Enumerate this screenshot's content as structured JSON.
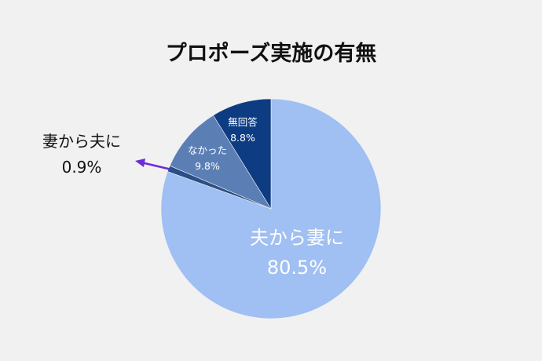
{
  "chart_data": {
    "type": "pie",
    "title": "プロポーズ実施の有無",
    "slices": [
      {
        "label": "夫から妻に",
        "value": 80.5,
        "display": "80.5%",
        "color": "#a0bff2"
      },
      {
        "label": "妻から夫に",
        "value": 0.9,
        "display": "0.9%",
        "color": "#2a4f86"
      },
      {
        "label": "なかった",
        "value": 9.8,
        "display": "9.8%",
        "color": "#5b7fb5"
      },
      {
        "label": "無回答",
        "value": 8.8,
        "display": "8.8%",
        "color": "#0d3c82"
      }
    ],
    "start_angle_deg": 0,
    "direction": "clockwise",
    "callout_arrow_color": "#6a2cd8",
    "legend": "none"
  }
}
